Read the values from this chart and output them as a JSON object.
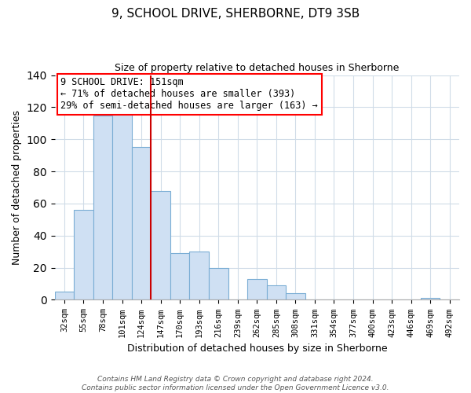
{
  "title": "9, SCHOOL DRIVE, SHERBORNE, DT9 3SB",
  "subtitle": "Size of property relative to detached houses in Sherborne",
  "xlabel": "Distribution of detached houses by size in Sherborne",
  "ylabel": "Number of detached properties",
  "bar_labels": [
    "32sqm",
    "55sqm",
    "78sqm",
    "101sqm",
    "124sqm",
    "147sqm",
    "170sqm",
    "193sqm",
    "216sqm",
    "239sqm",
    "262sqm",
    "285sqm",
    "308sqm",
    "331sqm",
    "354sqm",
    "377sqm",
    "400sqm",
    "423sqm",
    "446sqm",
    "469sqm",
    "492sqm"
  ],
  "bar_values": [
    5,
    56,
    115,
    116,
    95,
    68,
    29,
    30,
    20,
    0,
    13,
    9,
    4,
    0,
    0,
    0,
    0,
    0,
    0,
    1,
    0
  ],
  "bar_color": "#cfe0f3",
  "bar_edge_color": "#7aadd4",
  "vline_x_idx": 5,
  "vline_color": "#cc0000",
  "ylim": [
    0,
    140
  ],
  "yticks": [
    0,
    20,
    40,
    60,
    80,
    100,
    120,
    140
  ],
  "annotation_title": "9 SCHOOL DRIVE: 151sqm",
  "annotation_line1": "← 71% of detached houses are smaller (393)",
  "annotation_line2": "29% of semi-detached houses are larger (163) →",
  "footer_line1": "Contains HM Land Registry data © Crown copyright and database right 2024.",
  "footer_line2": "Contains public sector information licensed under the Open Government Licence v3.0.",
  "background_color": "#ffffff",
  "grid_color": "#d0dce8"
}
